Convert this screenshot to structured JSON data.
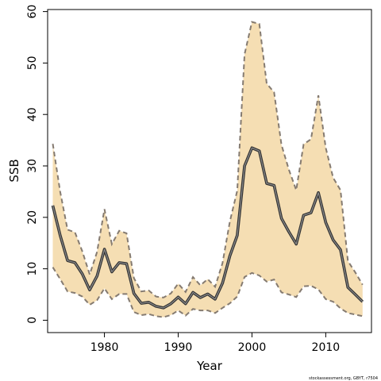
{
  "chart_data": {
    "type": "line",
    "title": "",
    "xlabel": "Year",
    "ylabel": "SSB",
    "xlim": [
      1972.3,
      2016.2
    ],
    "ylim": [
      -2.4,
      60.4
    ],
    "x_ticks": [
      1980,
      1990,
      2000,
      2010
    ],
    "y_ticks": [
      0,
      10,
      20,
      30,
      40,
      50,
      60
    ],
    "grid": false,
    "legend": "none",
    "x": [
      1973,
      1974,
      1975,
      1976,
      1977,
      1978,
      1979,
      1980,
      1981,
      1982,
      1983,
      1984,
      1985,
      1986,
      1987,
      1988,
      1989,
      1990,
      1991,
      1992,
      1993,
      1994,
      1995,
      1996,
      1997,
      1998,
      1999,
      2000,
      2001,
      2002,
      2003,
      2004,
      2005,
      2006,
      2007,
      2008,
      2009,
      2010,
      2011,
      2012,
      2013,
      2014,
      2015
    ],
    "series": [
      {
        "role": "estimate",
        "values": [
          22.3,
          16.5,
          11.6,
          11.2,
          9.0,
          5.9,
          8.6,
          13.8,
          9.4,
          11.2,
          11.0,
          5.2,
          3.3,
          3.5,
          2.7,
          2.4,
          3.2,
          4.5,
          3.2,
          5.4,
          4.4,
          5.1,
          4.1,
          7.2,
          12.5,
          16.5,
          30.0,
          33.5,
          32.9,
          26.6,
          26.2,
          19.8,
          17.2,
          14.8,
          20.4,
          20.9,
          24.8,
          19.0,
          15.6,
          13.7,
          6.4,
          5.0,
          3.6
        ]
      },
      {
        "role": "upper",
        "values": [
          34.3,
          25.0,
          17.6,
          17.1,
          13.4,
          8.9,
          13.3,
          21.6,
          14.8,
          17.4,
          16.9,
          8.2,
          5.6,
          5.8,
          4.6,
          4.4,
          5.2,
          7.1,
          5.5,
          8.4,
          6.8,
          8.0,
          6.5,
          11.1,
          19.2,
          25.2,
          51.7,
          58.0,
          57.6,
          46.0,
          44.3,
          34.1,
          29.3,
          25.3,
          34.2,
          35.2,
          43.7,
          33.5,
          27.7,
          25.3,
          11.5,
          9.3,
          6.9
        ]
      },
      {
        "role": "lower",
        "values": [
          10.3,
          8.0,
          5.6,
          5.3,
          4.6,
          3.0,
          3.9,
          6.2,
          4.1,
          5.1,
          5.1,
          1.6,
          1.0,
          1.2,
          0.8,
          0.6,
          1.0,
          1.9,
          0.9,
          2.2,
          1.9,
          1.9,
          1.4,
          2.4,
          3.3,
          4.6,
          8.4,
          9.2,
          8.7,
          7.5,
          7.9,
          5.4,
          5.0,
          4.5,
          6.6,
          6.7,
          6.0,
          4.1,
          3.6,
          2.3,
          1.4,
          1.1,
          0.8
        ]
      }
    ],
    "colors": {
      "band_fill": "#f5deb3",
      "band_edge": "#857b71",
      "line": "#333333",
      "line_highlight": "#8c8c8c"
    }
  },
  "footnote": "stockassessment.org, GBYT, r7504"
}
